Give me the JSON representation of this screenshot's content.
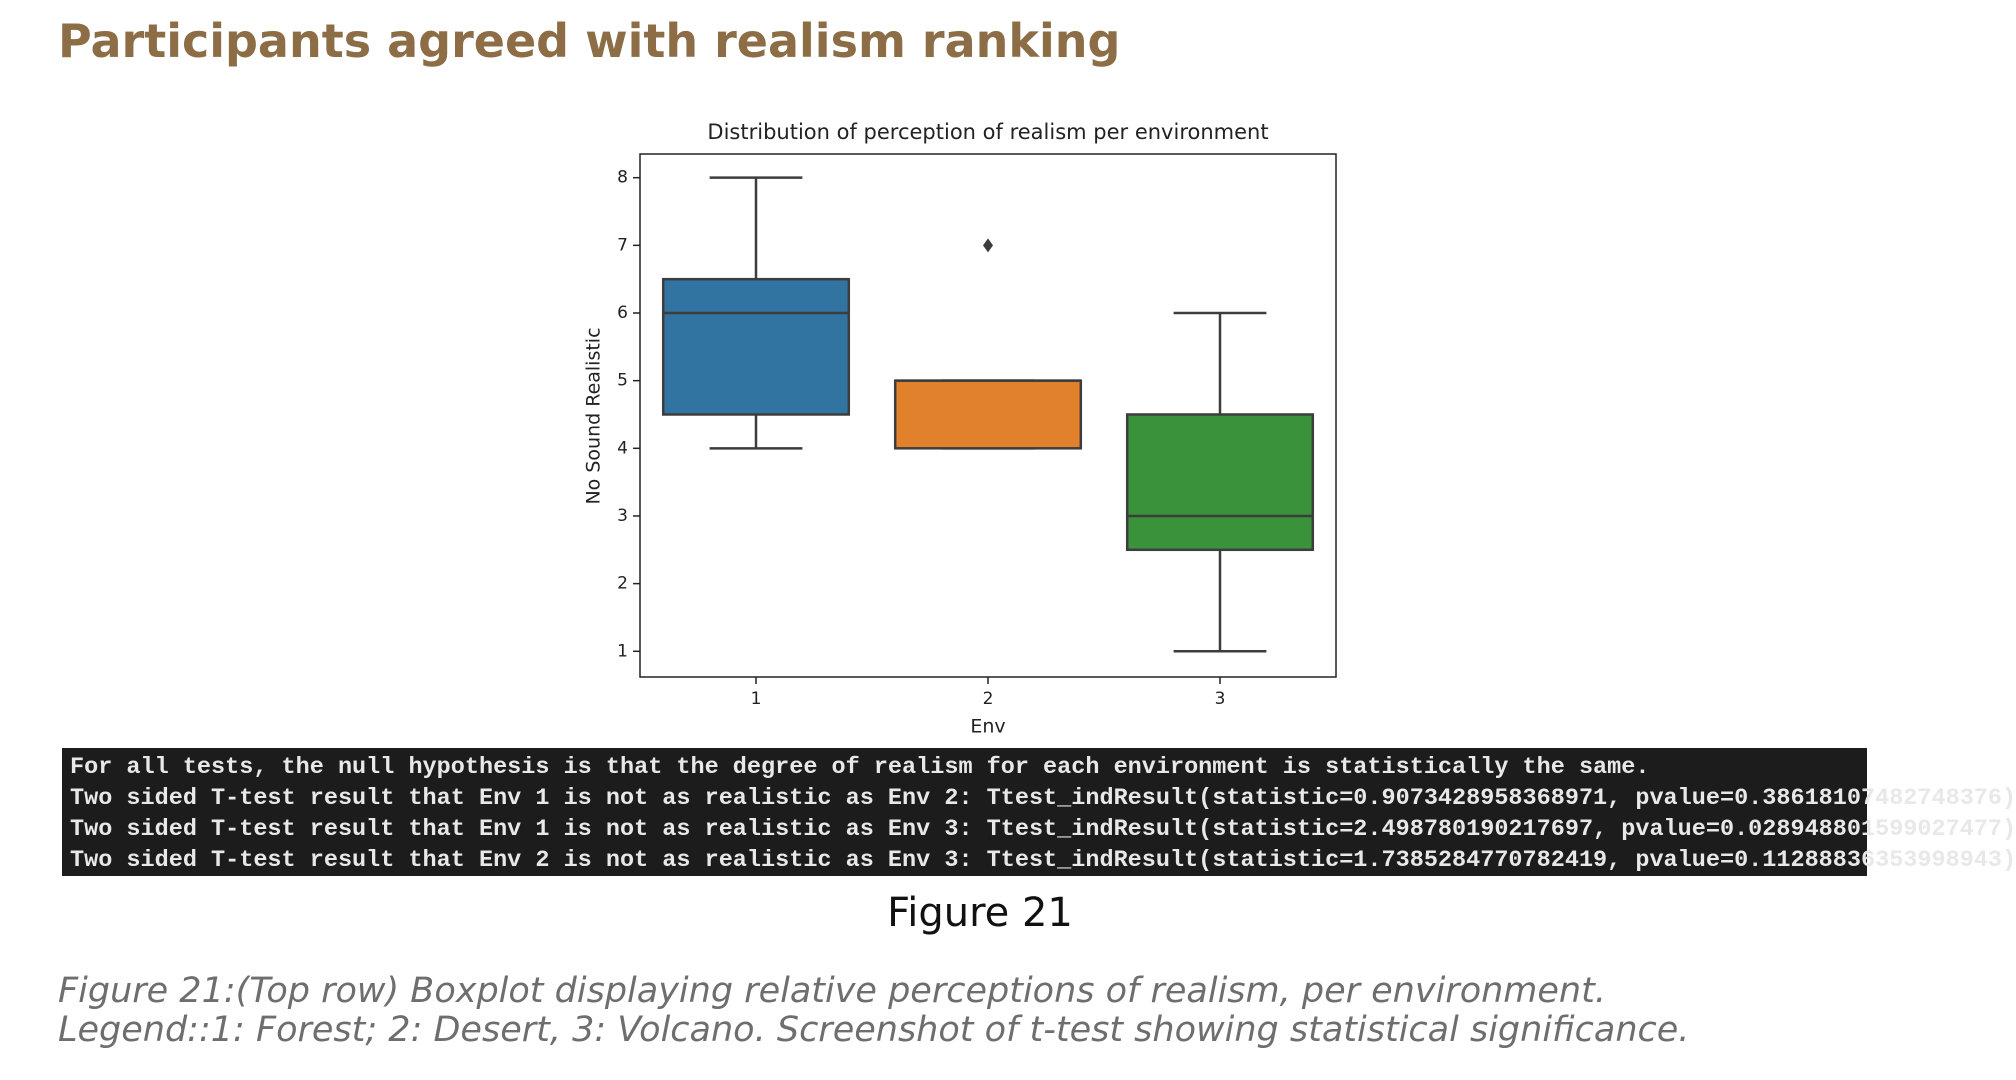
{
  "header": {
    "title": "Participants agreed with realism ranking"
  },
  "chart_data": {
    "type": "box",
    "title": "Distribution of perception of realism per environment",
    "x_label": "Env",
    "y_label": "No Sound Realistic",
    "categories": [
      "1",
      "2",
      "3"
    ],
    "series": [
      {
        "color": "#3274a1",
        "whisker_low": 4,
        "q1": 4.5,
        "median": 6,
        "q3": 6.5,
        "whisker_high": 8,
        "fliers": []
      },
      {
        "color": "#e1812c",
        "whisker_low": 4,
        "q1": 4,
        "median": 5,
        "q3": 5,
        "whisker_high": 5,
        "fliers": [
          7
        ]
      },
      {
        "color": "#3a923a",
        "whisker_low": 1,
        "q1": 2.5,
        "median": 3,
        "q3": 4.5,
        "whisker_high": 6,
        "fliers": []
      }
    ],
    "ylim": [
      0.62,
      8.35
    ],
    "yticks": [
      1,
      2,
      3,
      4,
      5,
      6,
      7,
      8
    ],
    "grid": false
  },
  "console": {
    "lines": [
      "For all tests, the null hypothesis is that the degree of realism for each environment is statistically the same.",
      "Two sided T-test result that Env 1 is not as realistic as Env 2: Ttest_indResult(statistic=0.9073428958368971, pvalue=0.38618107482748376)",
      "Two sided T-test result that Env 1 is not as realistic as Env 3: Ttest_indResult(statistic=2.498780190217697, pvalue=0.028948801599027477)",
      "Two sided T-test result that Env 2 is not as realistic as Env 3: Ttest_indResult(statistic=1.7385284770782419, pvalue=0.11288836353998943)"
    ]
  },
  "figure": {
    "label": "Figure  21",
    "caption": [
      "Figure 21:(Top row) Boxplot displaying relative perceptions of realism, per environment.",
      "Legend::1: Forest; 2: Desert, 3: Volcano. Screenshot of t-test showing statistical significance."
    ]
  }
}
